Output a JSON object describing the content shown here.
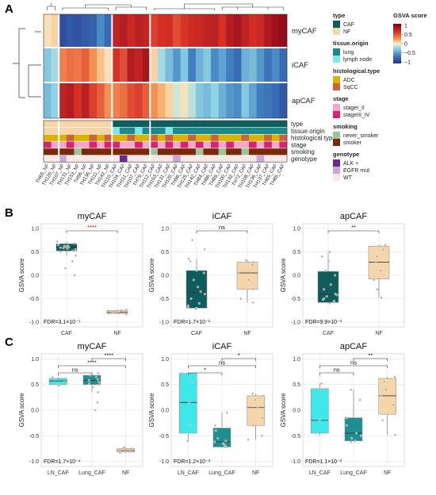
{
  "panel_letters": {
    "a": "A",
    "b": "B",
    "c": "C"
  },
  "heatmap": {
    "row_labels": [
      "myCAF",
      "iCAF",
      "apCAF"
    ],
    "annotation_labels": [
      "type",
      "tissue.origin",
      "histological.type",
      "stage",
      "smoking",
      "genotype"
    ],
    "columns": [
      "TH65_NF",
      "TH120_NF",
      "TH107_NF",
      "TH131_NF",
      "TH153_NF",
      "TH96_NF",
      "TH136_NF",
      "TH111_NF",
      "TH142_NF",
      "TH110_CAF",
      "TH104_CAF",
      "TH111_CAF",
      "TH107_CAF",
      "TH79_CAF",
      "TH112_CAF",
      "TH153_CAF",
      "TH131_CAF",
      "TH120_CAF",
      "TH96_CAF",
      "TH125_CAF",
      "TH142_CAF",
      "TH84_CAF",
      "TH86_CAF",
      "TH89_CAF",
      "TH100_CAF",
      "TH132_CAF",
      "TH72_CAF",
      "TH108_CAF",
      "TH136_CAF",
      "TH137_CAF",
      "TH65_CAF",
      "TH85_CAF"
    ]
  },
  "legends": {
    "type": {
      "title": "type",
      "items": [
        {
          "label": "CAF",
          "color": "#0f5c5c"
        },
        {
          "label": "NF",
          "color": "#f5d6ab"
        }
      ]
    },
    "tissue_origin": {
      "title": "tissue.origin",
      "items": [
        {
          "label": "lung",
          "color": "#1a8a8a"
        },
        {
          "label": "lymph node",
          "color": "#7de8ea"
        }
      ]
    },
    "histological_type": {
      "title": "histological.type",
      "items": [
        {
          "label": "ADC",
          "color": "#d9b300"
        },
        {
          "label": "SqCC",
          "color": "#c8643c"
        }
      ]
    },
    "stage": {
      "title": "stage",
      "items": [
        {
          "label": "stageI_II",
          "color": "#f4a7c8"
        },
        {
          "label": "stageIII_IV",
          "color": "#d6246e"
        }
      ]
    },
    "smoking": {
      "title": "smoking",
      "items": [
        {
          "label": "never_smoker",
          "color": "#9ac49a"
        },
        {
          "label": "smoker",
          "color": "#7a2a0a"
        }
      ]
    },
    "genotype": {
      "title": "genotype",
      "items": [
        {
          "label": "ALK +",
          "color": "#6a2a8a"
        },
        {
          "label": "EGFR mut",
          "color": "#c9a8d8"
        },
        {
          "label": "WT",
          "color": "#f7e9e7"
        }
      ]
    },
    "gsva": {
      "title": "GSVA score",
      "ticks": [
        "1",
        "0.5",
        "0",
        "−0.5",
        "−1"
      ]
    }
  },
  "colors": {
    "caf": "#0f5c5c",
    "nf": "#f5d6ab",
    "ln_caf": "#3fe8e8",
    "lung_caf": "#1e8f90",
    "sig_red": "#cc0000"
  },
  "panelB": [
    {
      "title": "myCAF",
      "groups": [
        "CAF",
        "NF"
      ],
      "ylabel": "GSVA score",
      "yticks": [
        "1.0",
        "0.5",
        "0.0",
        "-0.5",
        "-1.0"
      ],
      "fdr": "FDR=3.1×10⁻⁵",
      "sig": [
        "****"
      ],
      "boxes": [
        {
          "q1": 0.52,
          "median": 0.6,
          "q3": 0.67,
          "wlo": 0.42,
          "whi": 0.72
        },
        {
          "q1": -0.82,
          "median": -0.79,
          "q3": -0.75,
          "wlo": -0.83,
          "whi": -0.73
        }
      ]
    },
    {
      "title": "iCAF",
      "groups": [
        "CAF",
        "NF"
      ],
      "ylabel": "GSVA score",
      "yticks": [
        "1.0",
        "0.5",
        "0.0",
        "-0.5",
        "-1.0"
      ],
      "fdr": "FDR=1.7×10⁻¹",
      "sig": [
        "ns"
      ],
      "boxes": [
        {
          "q1": -0.7,
          "median": -0.36,
          "q3": 0.1,
          "wlo": -0.72,
          "whi": 0.35
        },
        {
          "q1": -0.3,
          "median": 0.05,
          "q3": 0.28,
          "wlo": -0.58,
          "whi": 0.32
        }
      ]
    },
    {
      "title": "apCAF",
      "groups": [
        "CAF",
        "NF"
      ],
      "ylabel": "GSVA score",
      "yticks": [
        "1.0",
        "0.5",
        "0.0",
        "-0.5",
        "-1.0"
      ],
      "fdr": "FDR=9.9×10⁻³",
      "sig": [
        "**"
      ],
      "boxes": [
        {
          "q1": -0.58,
          "median": -0.41,
          "q3": 0.08,
          "wlo": -0.6,
          "whi": 0.48
        },
        {
          "q1": -0.08,
          "median": 0.28,
          "q3": 0.62,
          "wlo": -0.48,
          "whi": 0.65
        }
      ]
    }
  ],
  "panelC": [
    {
      "title": "myCAF",
      "groups": [
        "LN_CAF",
        "Lung_CAF",
        "NF"
      ],
      "ylabel": "GSVA score",
      "yticks": [
        "1.0",
        "0.5",
        "0.0",
        "-0.5",
        "-1.0"
      ],
      "fdr": "FDR=1.7×10⁻⁴",
      "sig": [
        "****",
        "****",
        "ns"
      ],
      "boxes": [
        {
          "q1": 0.5,
          "median": 0.57,
          "q3": 0.62,
          "wlo": 0.48,
          "whi": 0.64
        },
        {
          "q1": 0.5,
          "median": 0.58,
          "q3": 0.68,
          "wlo": 0.35,
          "whi": 0.72
        },
        {
          "q1": -0.82,
          "median": -0.79,
          "q3": -0.75,
          "wlo": -0.83,
          "whi": -0.73
        }
      ]
    },
    {
      "title": "iCAF",
      "groups": [
        "LN_CAF",
        "Lung_CAF",
        "NF"
      ],
      "ylabel": "GSVA score",
      "yticks": [
        "1.0",
        "0.5",
        "0.0",
        "-0.5",
        "-1.0"
      ],
      "fdr": "FDR=1.2×10⁻³",
      "sig": [
        "*",
        "ns",
        "*"
      ],
      "boxes": [
        {
          "q1": -0.45,
          "median": 0.15,
          "q3": 0.72,
          "wlo": -0.6,
          "whi": 0.72
        },
        {
          "q1": -0.72,
          "median": -0.62,
          "q3": -0.35,
          "wlo": -0.73,
          "whi": -0.05
        },
        {
          "q1": -0.3,
          "median": 0.05,
          "q3": 0.28,
          "wlo": -0.58,
          "whi": 0.32
        }
      ]
    },
    {
      "title": "apCAF",
      "groups": [
        "LN_CAF",
        "Lung_CAF",
        "NF"
      ],
      "ylabel": "GSVA score",
      "yticks": [
        "1.0",
        "0.5",
        "0.0",
        "-0.5",
        "-1.0"
      ],
      "fdr": "FDR=1.1×10⁻²",
      "sig": [
        "**",
        "ns",
        "ns"
      ],
      "boxes": [
        {
          "q1": -0.45,
          "median": -0.2,
          "q3": 0.42,
          "wlo": -0.5,
          "whi": 0.52
        },
        {
          "q1": -0.6,
          "median": -0.45,
          "q3": -0.15,
          "wlo": -0.62,
          "whi": 0.4
        },
        {
          "q1": -0.08,
          "median": 0.28,
          "q3": 0.62,
          "wlo": -0.48,
          "whi": 0.65
        }
      ]
    }
  ],
  "chart_data": [
    {
      "type": "box",
      "title": "myCAF",
      "categories": [
        "CAF",
        "NF"
      ],
      "ylabel": "GSVA score",
      "ylim": [
        -1.1,
        1.1
      ],
      "annotation": "FDR=3.1×10⁻⁵",
      "series": [
        {
          "name": "CAF",
          "q1": 0.52,
          "median": 0.6,
          "q3": 0.67,
          "min": 0.42,
          "max": 0.72,
          "points": [
            0.72,
            0.68,
            0.65,
            0.63,
            0.62,
            0.61,
            0.6,
            0.59,
            0.58,
            0.57,
            0.55,
            0.52,
            0.5,
            0.42,
            0.3,
            0.15,
            0.0
          ]
        },
        {
          "name": "NF",
          "q1": -0.82,
          "median": -0.79,
          "q3": -0.75,
          "min": -0.83,
          "max": -0.73,
          "points": [
            -0.73,
            -0.75,
            -0.77,
            -0.79,
            -0.8,
            -0.81,
            -0.83
          ]
        }
      ]
    },
    {
      "type": "box",
      "title": "iCAF",
      "categories": [
        "CAF",
        "NF"
      ],
      "ylabel": "GSVA score",
      "ylim": [
        -1.1,
        1.1
      ],
      "annotation": "FDR=1.7×10⁻¹",
      "series": [
        {
          "name": "CAF",
          "q1": -0.7,
          "median": -0.36,
          "q3": 0.1,
          "min": -0.72,
          "max": 0.35,
          "points": [
            0.75,
            0.55,
            0.35,
            0.3,
            0.1,
            0.05,
            -0.1,
            -0.25,
            -0.35,
            -0.4,
            -0.5,
            -0.6,
            -0.65,
            -0.68,
            -0.7,
            -0.72
          ]
        },
        {
          "name": "NF",
          "q1": -0.3,
          "median": 0.05,
          "q3": 0.28,
          "min": -0.58,
          "max": 0.32,
          "points": [
            0.32,
            0.28,
            0.22,
            0.05,
            -0.1,
            -0.3,
            -0.5,
            -0.58
          ]
        }
      ]
    },
    {
      "type": "box",
      "title": "apCAF",
      "categories": [
        "CAF",
        "NF"
      ],
      "ylabel": "GSVA score",
      "ylim": [
        -1.1,
        1.1
      ],
      "annotation": "FDR=9.9×10⁻³",
      "series": [
        {
          "name": "CAF",
          "q1": -0.58,
          "median": -0.41,
          "q3": 0.08,
          "min": -0.6,
          "max": 0.48,
          "points": [
            0.5,
            0.4,
            0.3,
            0.1,
            0.0,
            -0.2,
            -0.3,
            -0.4,
            -0.42,
            -0.45,
            -0.5,
            -0.52,
            -0.55,
            -0.58,
            -0.6
          ]
        },
        {
          "name": "NF",
          "q1": -0.08,
          "median": 0.28,
          "q3": 0.62,
          "min": -0.48,
          "max": 0.65,
          "points": [
            0.65,
            0.62,
            0.55,
            0.4,
            0.28,
            0.1,
            -0.1,
            -0.3,
            -0.48
          ]
        }
      ]
    },
    {
      "type": "box",
      "title": "myCAF",
      "categories": [
        "LN_CAF",
        "Lung_CAF",
        "NF"
      ],
      "ylabel": "GSVA score",
      "ylim": [
        -1.1,
        1.1
      ],
      "annotation": "FDR=1.7×10⁻⁴",
      "series": [
        {
          "name": "LN_CAF",
          "q1": 0.5,
          "median": 0.57,
          "q3": 0.62,
          "min": 0.48,
          "max": 0.64,
          "points": [
            0.64,
            0.6,
            0.55,
            0.5,
            0.48
          ]
        },
        {
          "name": "Lung_CAF",
          "q1": 0.5,
          "median": 0.58,
          "q3": 0.68,
          "min": 0.35,
          "max": 0.72,
          "points": [
            0.72,
            0.68,
            0.65,
            0.6,
            0.58,
            0.55,
            0.52,
            0.5,
            0.45,
            0.35,
            0.15,
            0.0
          ]
        },
        {
          "name": "NF",
          "q1": -0.82,
          "median": -0.79,
          "q3": -0.75,
          "min": -0.83,
          "max": -0.73,
          "points": [
            -0.73,
            -0.75,
            -0.77,
            -0.79,
            -0.81,
            -0.83
          ]
        }
      ]
    },
    {
      "type": "box",
      "title": "iCAF",
      "categories": [
        "LN_CAF",
        "Lung_CAF",
        "NF"
      ],
      "ylabel": "GSVA score",
      "ylim": [
        -1.1,
        1.1
      ],
      "annotation": "FDR=1.2×10⁻³",
      "series": [
        {
          "name": "LN_CAF",
          "q1": -0.45,
          "median": 0.15,
          "q3": 0.72,
          "min": -0.6,
          "max": 0.72,
          "points": [
            0.72,
            0.55,
            0.15,
            -0.3,
            -0.6
          ]
        },
        {
          "name": "Lung_CAF",
          "q1": -0.72,
          "median": -0.62,
          "q3": -0.35,
          "min": -0.73,
          "max": -0.05,
          "points": [
            -0.05,
            -0.3,
            -0.4,
            -0.55,
            -0.6,
            -0.62,
            -0.65,
            -0.68,
            -0.7,
            -0.72
          ]
        },
        {
          "name": "NF",
          "q1": -0.3,
          "median": 0.05,
          "q3": 0.28,
          "min": -0.58,
          "max": 0.32,
          "points": [
            0.32,
            0.28,
            0.2,
            0.05,
            -0.15,
            -0.3,
            -0.5,
            -0.58
          ]
        }
      ]
    },
    {
      "type": "box",
      "title": "apCAF",
      "categories": [
        "LN_CAF",
        "Lung_CAF",
        "NF"
      ],
      "ylabel": "GSVA score",
      "ylim": [
        -1.1,
        1.1
      ],
      "annotation": "FDR=1.1×10⁻²",
      "series": [
        {
          "name": "LN_CAF",
          "q1": -0.45,
          "median": -0.2,
          "q3": 0.42,
          "min": -0.5,
          "max": 0.52,
          "points": [
            0.52,
            0.4,
            -0.2,
            -0.45
          ]
        },
        {
          "name": "Lung_CAF",
          "q1": -0.6,
          "median": -0.45,
          "q3": -0.15,
          "min": -0.62,
          "max": 0.4,
          "points": [
            0.4,
            0.2,
            -0.15,
            -0.3,
            -0.45,
            -0.5,
            -0.55,
            -0.6,
            -0.62
          ]
        },
        {
          "name": "NF",
          "q1": -0.08,
          "median": 0.28,
          "q3": 0.62,
          "min": -0.48,
          "max": 0.65,
          "points": [
            0.65,
            0.55,
            0.4,
            0.28,
            0.1,
            -0.2,
            -0.48
          ]
        }
      ]
    }
  ]
}
